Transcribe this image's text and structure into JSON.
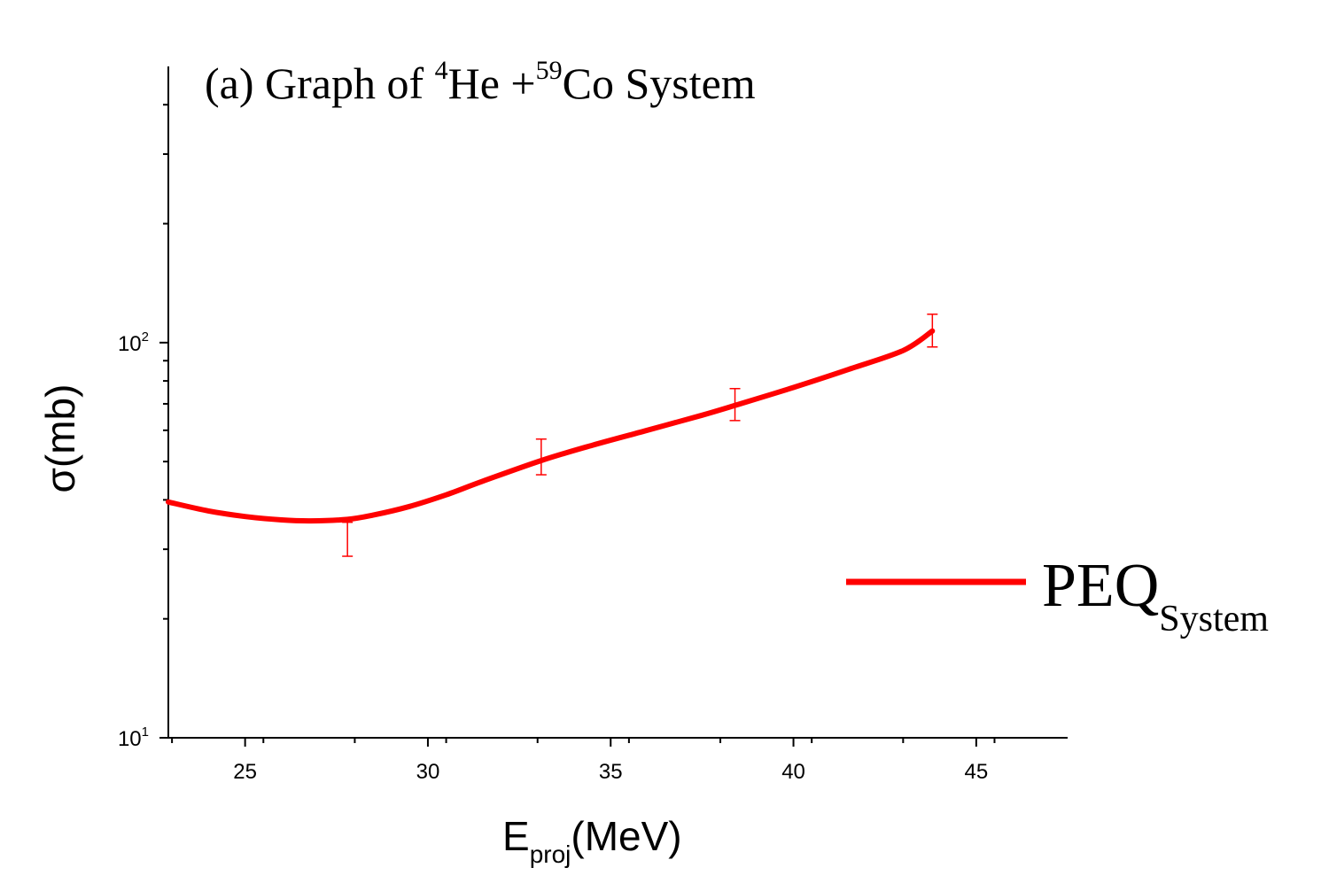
{
  "chart_data": {
    "type": "line",
    "title": {
      "prefix": "(a) Graph of ",
      "sup1": "4",
      "mid": "He +",
      "sup2": "59",
      "suffix": "Co System"
    },
    "xlabel": {
      "main": "E",
      "sub": "proj",
      "rest": "(MeV)"
    },
    "ylabel": "σ(mb)",
    "x_scale": "linear",
    "y_scale": "log",
    "xlim": [
      22.9,
      47.5
    ],
    "ylim": [
      10,
      500
    ],
    "x_ticks": [
      25,
      30,
      35,
      40,
      45
    ],
    "x_tick_labels": [
      "25",
      "30",
      "35",
      "40",
      "45"
    ],
    "y_ticks": [
      {
        "value": 10,
        "base": "10",
        "exp": "1"
      },
      {
        "value": 100,
        "base": "10",
        "exp": "2"
      }
    ],
    "grid": false,
    "legend_position": "right",
    "series": [
      {
        "name": {
          "main": "PEQ",
          "sub": "System"
        },
        "color": "#ff0000",
        "curve": {
          "x": [
            22.9,
            24.0,
            25.0,
            26.0,
            26.8,
            27.8,
            28.5,
            29.5,
            30.5,
            31.5,
            33.1,
            34.5,
            36.0,
            37.5,
            38.5,
            40.0,
            41.5,
            43.0,
            43.8
          ],
          "y": [
            39.5,
            37.5,
            36.3,
            35.6,
            35.4,
            35.7,
            36.6,
            38.5,
            41.2,
            44.6,
            50.3,
            55.0,
            60.0,
            65.5,
            69.8,
            77.0,
            85.5,
            95.5,
            107
          ]
        },
        "error_bars": [
          {
            "x": 27.8,
            "y": 34.8,
            "lo": 28.8,
            "hi": 35.1
          },
          {
            "x": 33.1,
            "y": 49.5,
            "lo": 46.3,
            "hi": 57.0
          },
          {
            "x": 38.4,
            "y": 69.5,
            "lo": 63.5,
            "hi": 76.5
          },
          {
            "x": 43.8,
            "y": 107,
            "lo": 97.5,
            "hi": 118
          }
        ]
      }
    ]
  }
}
